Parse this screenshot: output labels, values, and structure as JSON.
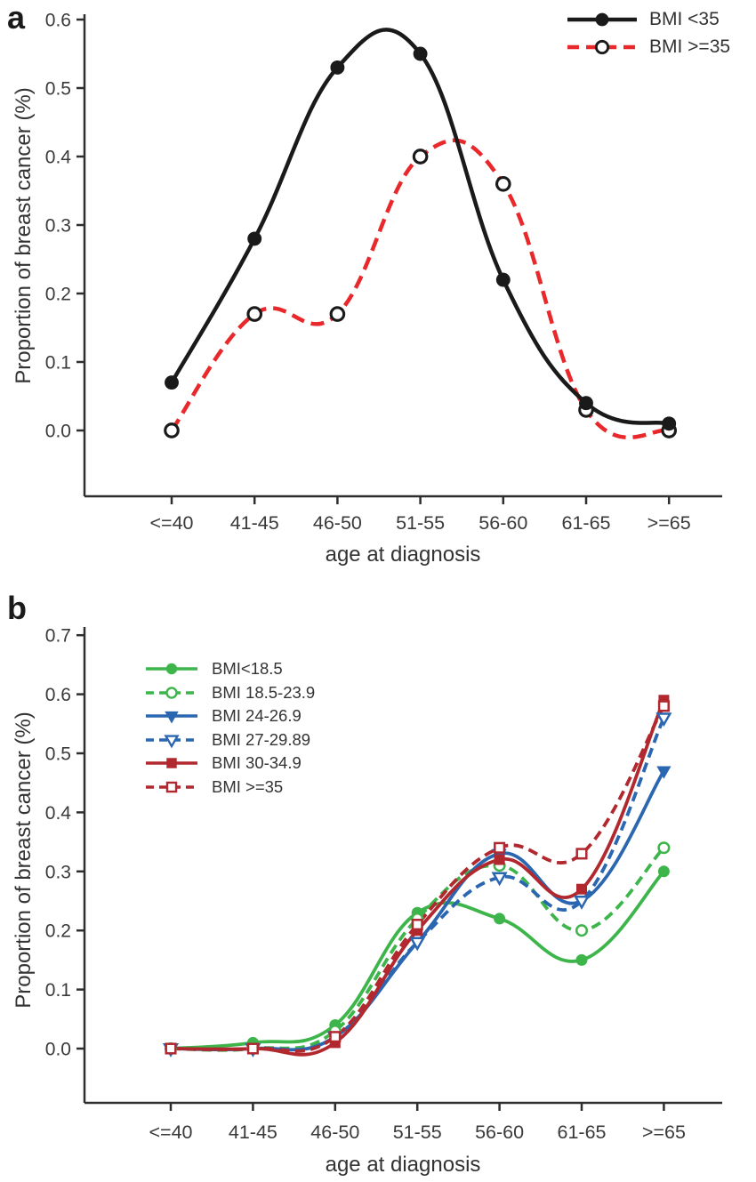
{
  "figure": {
    "background": "#ffffff",
    "text_color": "#3a3a3a",
    "axis_color": "#2e2e2e"
  },
  "chart_data": [
    {
      "type": "line",
      "panel_label": "a",
      "title": "",
      "xlabel": "age at diagnosis",
      "ylabel": "Proportion of breast cancer (%)",
      "categories": [
        "<=40",
        "41-45",
        "46-50",
        "51-55",
        "56-60",
        "61-65",
        ">=65"
      ],
      "yticks": [
        "0.0",
        "0.1",
        "0.2",
        "0.3",
        "0.4",
        "0.5",
        "0.6"
      ],
      "ylim": [
        -0.07,
        0.62
      ],
      "grid": false,
      "legend_position": "top-right",
      "series": [
        {
          "name": "BMI <35",
          "color": "#1a1a1a",
          "line_style": "solid",
          "marker": "circle-filled",
          "marker_edge": "#1a1a1a",
          "values": [
            0.07,
            0.28,
            0.53,
            0.55,
            0.22,
            0.04,
            0.01
          ]
        },
        {
          "name": "BMI >=35",
          "color": "#e8282b",
          "line_style": "dashed",
          "marker": "circle-open",
          "marker_edge": "#1a1a1a",
          "values": [
            0.0,
            0.17,
            0.17,
            0.4,
            0.36,
            0.03,
            0.0
          ]
        }
      ]
    },
    {
      "type": "line",
      "panel_label": "b",
      "title": "",
      "xlabel": "age at diagnosis",
      "ylabel": "Proportion of breast cancer (%)",
      "categories": [
        "<=40",
        "41-45",
        "46-50",
        "51-55",
        "56-60",
        "61-65",
        ">=65"
      ],
      "yticks": [
        "0.0",
        "0.1",
        "0.2",
        "0.3",
        "0.4",
        "0.5",
        "0.6",
        "0.7"
      ],
      "ylim": [
        -0.06,
        0.73
      ],
      "grid": false,
      "legend_position": "upper-left",
      "series": [
        {
          "name": "BMI<18.5",
          "color": "#3db54b",
          "line_style": "solid",
          "marker": "circle-filled",
          "marker_edge": "#3db54b",
          "values": [
            0.0,
            0.01,
            0.04,
            0.23,
            0.22,
            0.15,
            0.3
          ]
        },
        {
          "name": "BMI 18.5-23.9",
          "color": "#3db54b",
          "line_style": "dashed",
          "marker": "circle-open",
          "marker_edge": "#3db54b",
          "values": [
            0.0,
            0.0,
            0.03,
            0.22,
            0.31,
            0.2,
            0.34
          ]
        },
        {
          "name": "BMI 24-26.9",
          "color": "#2b66b1",
          "line_style": "solid",
          "marker": "triangle-down-filled",
          "marker_edge": "#2b66b1",
          "values": [
            0.0,
            0.0,
            0.02,
            0.18,
            0.33,
            0.25,
            0.47
          ]
        },
        {
          "name": "BMI 27-29.89",
          "color": "#2b66b1",
          "line_style": "dashed",
          "marker": "triangle-down-open",
          "marker_edge": "#2b66b1",
          "values": [
            0.0,
            0.0,
            0.02,
            0.18,
            0.29,
            0.25,
            0.56
          ]
        },
        {
          "name": "BMI 30-34.9",
          "color": "#b1292e",
          "line_style": "solid",
          "marker": "square-filled",
          "marker_edge": "#b1292e",
          "values": [
            0.0,
            0.0,
            0.01,
            0.2,
            0.32,
            0.27,
            0.59
          ]
        },
        {
          "name": "BMI >=35",
          "color": "#b1292e",
          "line_style": "dashed",
          "marker": "square-open",
          "marker_edge": "#b1292e",
          "values": [
            0.0,
            0.0,
            0.02,
            0.21,
            0.34,
            0.33,
            0.58
          ]
        }
      ]
    }
  ]
}
